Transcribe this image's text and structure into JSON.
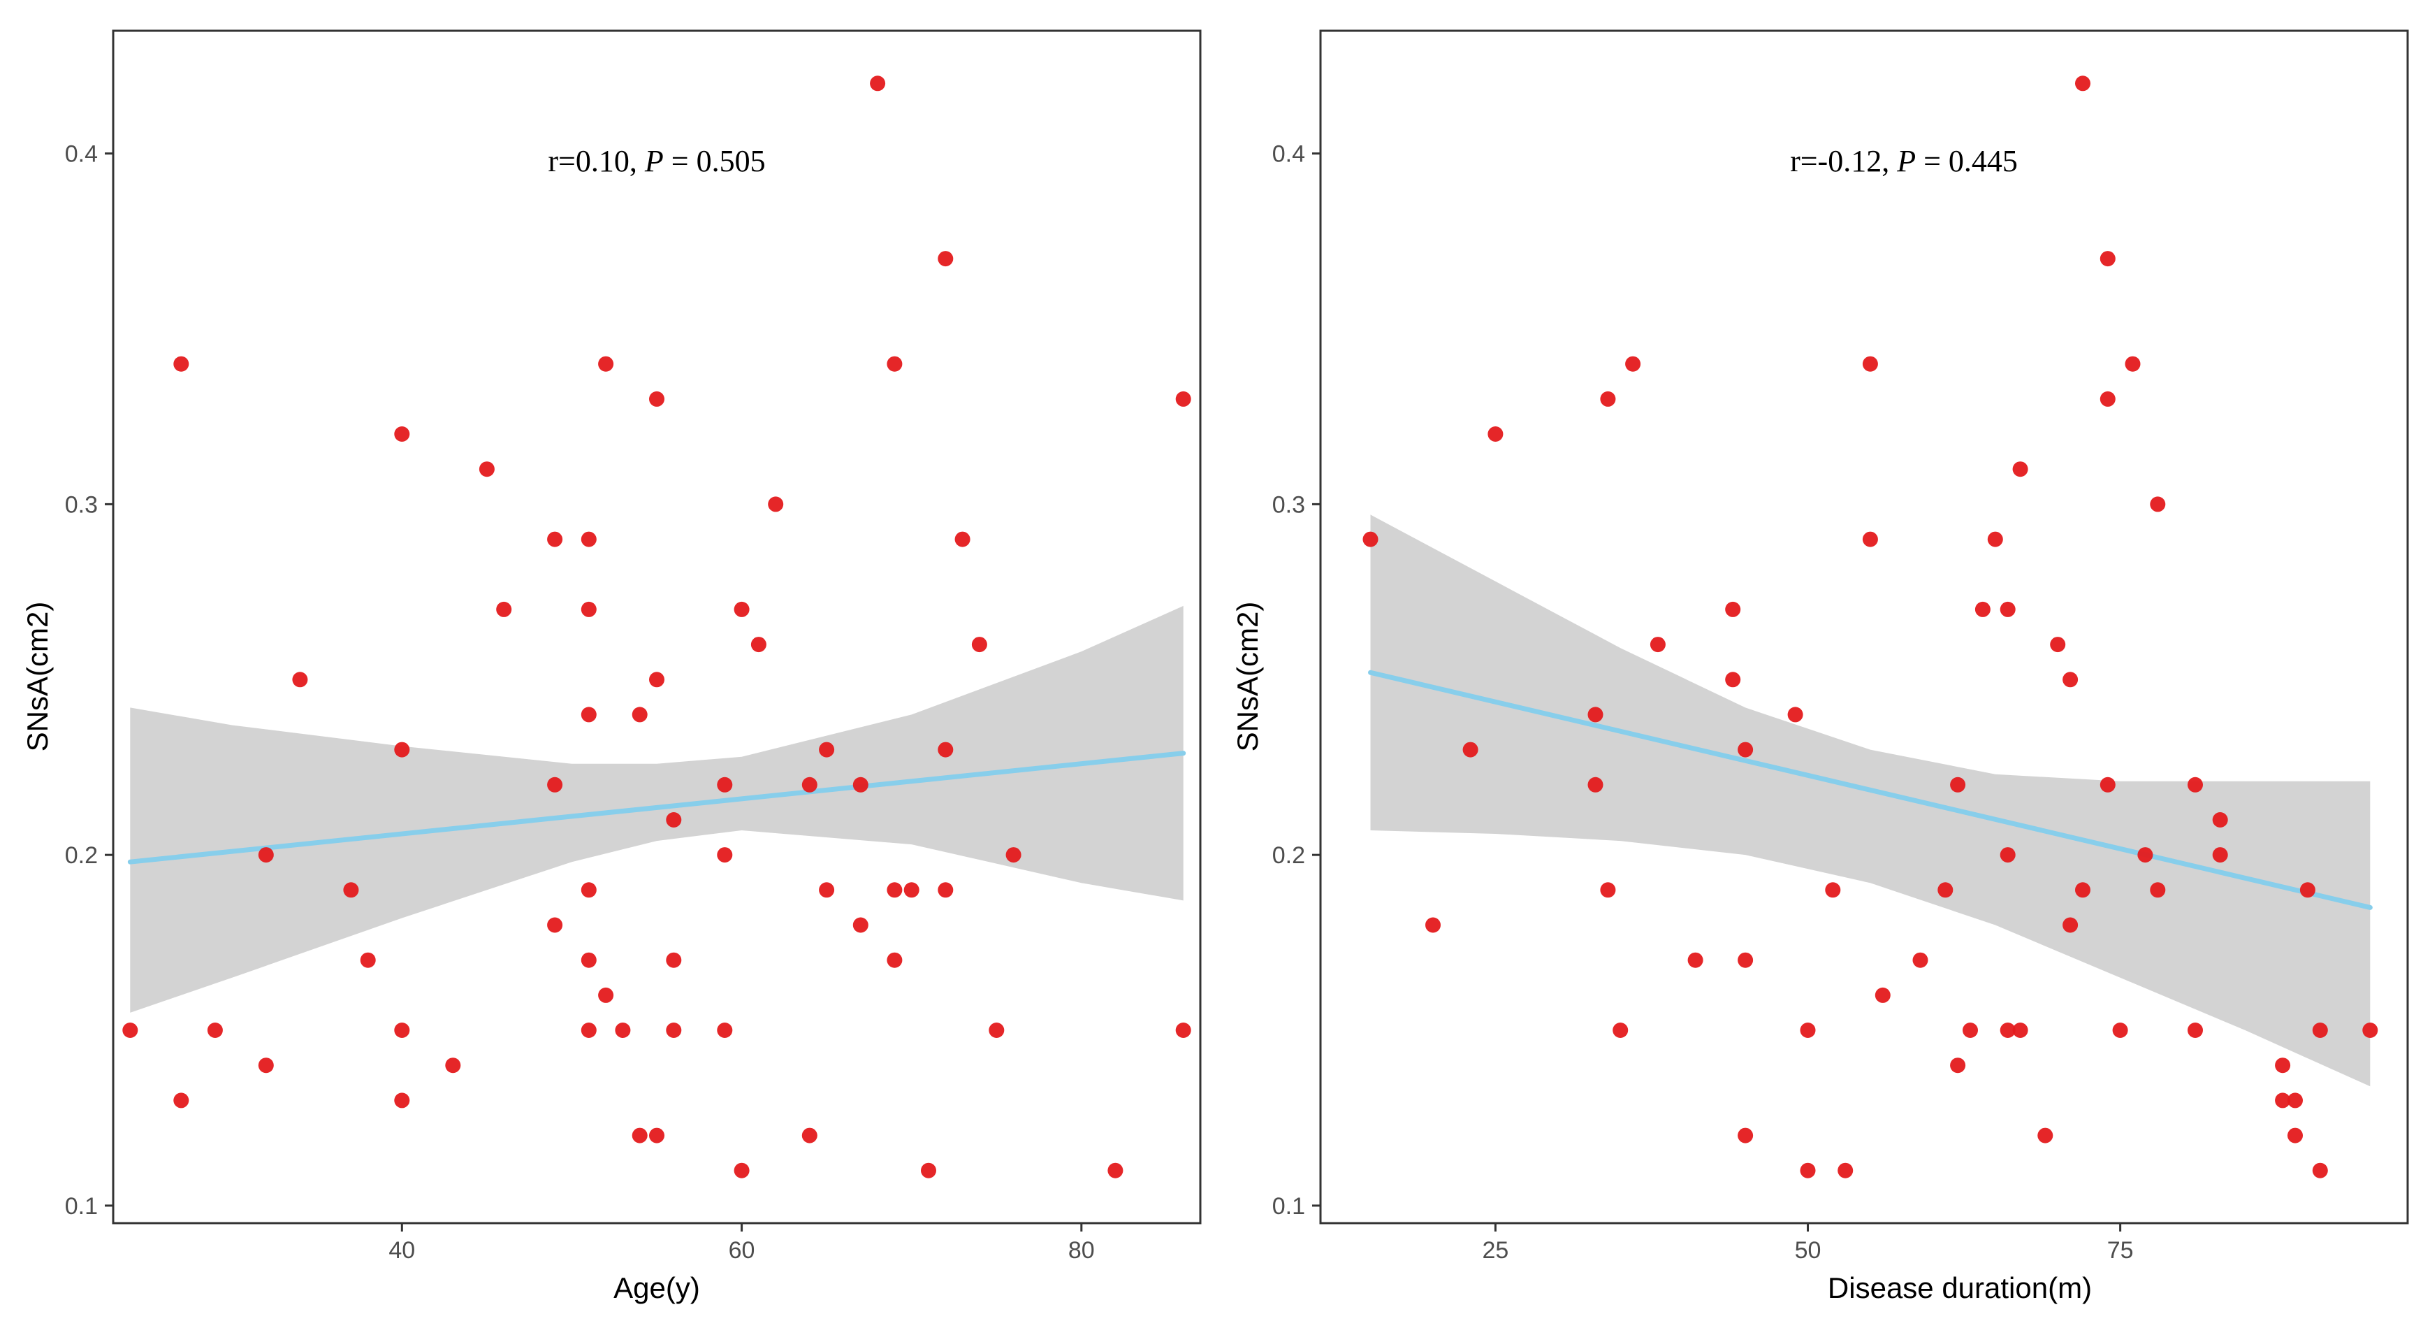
{
  "colors": {
    "point": "#e41a1c",
    "fit_line": "#87ceeb",
    "ci_band": "#d3d3d3",
    "frame": "#333333",
    "tick_text": "#4d4d4d"
  },
  "chart_data": [
    {
      "type": "scatter",
      "xlabel": "Age(y)",
      "ylabel": "SNsA(cm2)",
      "annotation": {
        "prefix": "r=0.10, ",
        "p_symbol": "P",
        "suffix": " = 0.505"
      },
      "xlim": [
        23,
        87
      ],
      "ylim": [
        0.095,
        0.435
      ],
      "xticks": [
        40,
        60,
        80
      ],
      "yticks": [
        0.1,
        0.2,
        0.3,
        0.4
      ],
      "ytick_labels": [
        "0.1",
        "0.2",
        "0.3",
        "0.4"
      ],
      "fit": {
        "x": [
          24,
          86
        ],
        "y": [
          0.198,
          0.229
        ]
      },
      "ci_band": {
        "x": [
          24,
          30,
          40,
          50,
          55,
          60,
          70,
          80,
          86
        ],
        "lower": [
          0.155,
          0.165,
          0.182,
          0.198,
          0.204,
          0.207,
          0.203,
          0.192,
          0.187
        ],
        "upper": [
          0.242,
          0.237,
          0.231,
          0.226,
          0.226,
          0.228,
          0.24,
          0.258,
          0.271
        ]
      },
      "points": {
        "x": [
          24,
          27,
          27,
          29,
          32,
          32,
          34,
          37,
          38,
          40,
          40,
          40,
          40,
          43,
          45,
          46,
          49,
          49,
          49,
          51,
          51,
          51,
          51,
          51,
          51,
          52,
          52,
          53,
          54,
          54,
          55,
          55,
          55,
          56,
          56,
          56,
          59,
          59,
          59,
          60,
          60,
          61,
          62,
          64,
          64,
          65,
          65,
          67,
          67,
          68,
          69,
          69,
          69,
          70,
          71,
          72,
          72,
          72,
          73,
          74,
          75,
          76,
          82,
          86,
          86
        ],
        "y": [
          0.15,
          0.34,
          0.13,
          0.15,
          0.2,
          0.14,
          0.25,
          0.19,
          0.17,
          0.32,
          0.23,
          0.15,
          0.13,
          0.14,
          0.31,
          0.27,
          0.29,
          0.22,
          0.18,
          0.29,
          0.27,
          0.24,
          0.19,
          0.17,
          0.15,
          0.34,
          0.16,
          0.15,
          0.24,
          0.12,
          0.33,
          0.25,
          0.12,
          0.21,
          0.17,
          0.15,
          0.22,
          0.2,
          0.15,
          0.27,
          0.11,
          0.26,
          0.3,
          0.22,
          0.12,
          0.23,
          0.19,
          0.22,
          0.18,
          0.42,
          0.34,
          0.19,
          0.17,
          0.19,
          0.11,
          0.37,
          0.23,
          0.19,
          0.29,
          0.26,
          0.15,
          0.2,
          0.11,
          0.33,
          0.15
        ]
      }
    },
    {
      "type": "scatter",
      "xlabel": "Disease duration(m)",
      "ylabel": "SNsA(cm2)",
      "annotation": {
        "prefix": "r=-0.12, ",
        "p_symbol": "P",
        "suffix": " = 0.445"
      },
      "xlim": [
        11,
        98
      ],
      "ylim": [
        0.095,
        0.435
      ],
      "xticks": [
        25,
        50,
        75
      ],
      "yticks": [
        0.1,
        0.2,
        0.3,
        0.4
      ],
      "ytick_labels": [
        "0.1",
        "0.2",
        "0.3",
        "0.4"
      ],
      "fit": {
        "x": [
          15,
          95
        ],
        "y": [
          0.252,
          0.185
        ]
      },
      "ci_band": {
        "x": [
          15,
          25,
          35,
          45,
          55,
          65,
          75,
          85,
          95
        ],
        "lower": [
          0.207,
          0.206,
          0.204,
          0.2,
          0.192,
          0.18,
          0.165,
          0.15,
          0.134
        ],
        "upper": [
          0.297,
          0.278,
          0.259,
          0.242,
          0.23,
          0.223,
          0.221,
          0.221,
          0.221
        ]
      },
      "points": {
        "x": [
          15,
          20,
          23,
          25,
          33,
          33,
          34,
          34,
          35,
          36,
          38,
          41,
          44,
          44,
          45,
          45,
          45,
          49,
          50,
          50,
          52,
          53,
          55,
          55,
          56,
          59,
          61,
          62,
          62,
          63,
          64,
          65,
          66,
          66,
          66,
          67,
          67,
          69,
          70,
          71,
          71,
          72,
          72,
          74,
          74,
          74,
          75,
          76,
          77,
          78,
          78,
          81,
          81,
          83,
          83,
          88,
          88,
          89,
          89,
          90,
          91,
          91,
          95
        ],
        "y": [
          0.29,
          0.18,
          0.23,
          0.32,
          0.24,
          0.22,
          0.33,
          0.19,
          0.15,
          0.34,
          0.26,
          0.17,
          0.27,
          0.25,
          0.23,
          0.17,
          0.12,
          0.24,
          0.15,
          0.11,
          0.19,
          0.11,
          0.34,
          0.29,
          0.16,
          0.17,
          0.19,
          0.22,
          0.14,
          0.15,
          0.27,
          0.29,
          0.27,
          0.2,
          0.15,
          0.31,
          0.15,
          0.12,
          0.26,
          0.25,
          0.18,
          0.42,
          0.19,
          0.37,
          0.33,
          0.22,
          0.15,
          0.34,
          0.2,
          0.3,
          0.19,
          0.22,
          0.15,
          0.21,
          0.2,
          0.14,
          0.13,
          0.13,
          0.12,
          0.19,
          0.15,
          0.11,
          0.15
        ]
      }
    }
  ]
}
